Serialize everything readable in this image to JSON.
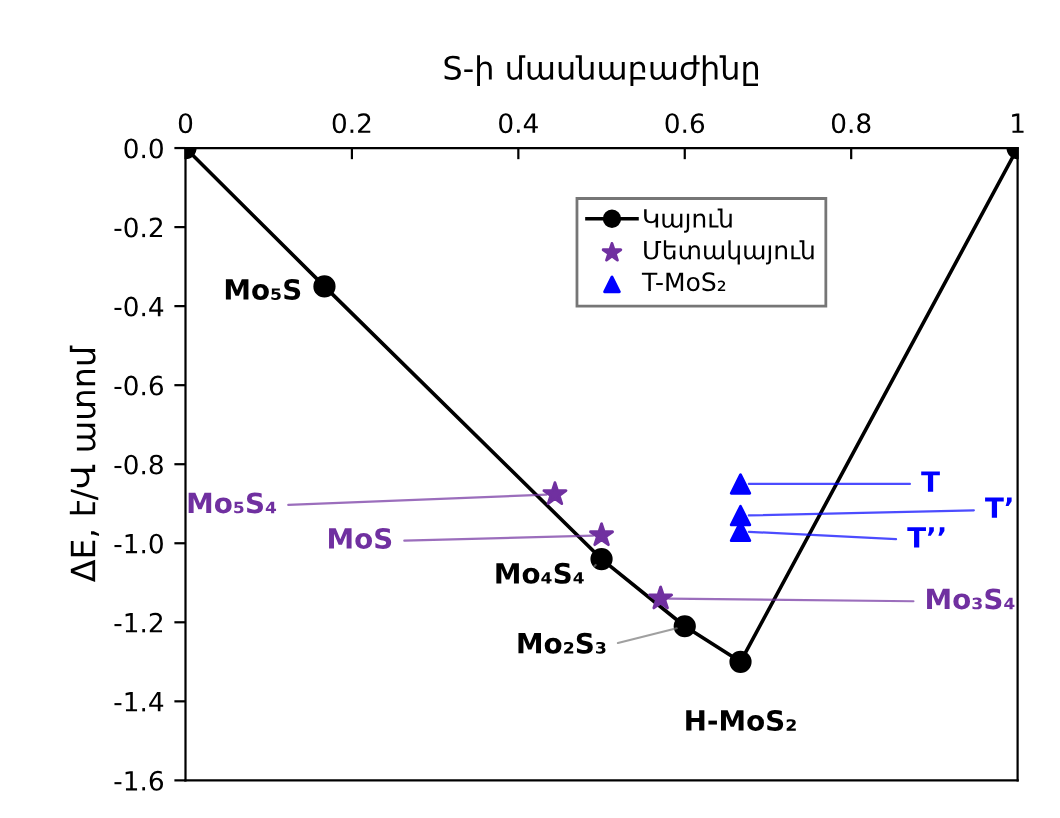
{
  "chart_data": {
    "type": "scatter",
    "xlabel": "S-ի մասնաբաժինը",
    "ylabel": "ΔE, է/Վ ատոմ",
    "xlim": [
      0,
      1
    ],
    "xticks": [
      0,
      0.2,
      0.4,
      0.6,
      0.8,
      1
    ],
    "ylim": [
      -1.6,
      0
    ],
    "yticks": [
      {
        "value": 0,
        "label": "0.0"
      },
      {
        "value": -0.2,
        "label": "-0.2"
      },
      {
        "value": -0.4,
        "label": "-0.4"
      },
      {
        "value": -0.6,
        "label": "-0.6"
      },
      {
        "value": -0.8,
        "label": "-0.8"
      },
      {
        "value": -1.0,
        "label": "-1.0"
      },
      {
        "value": -1.2,
        "label": "-1.2"
      },
      {
        "value": -1.4,
        "label": "-1.4"
      },
      {
        "value": -1.6,
        "label": "-1.6"
      }
    ],
    "grid": false,
    "legend": "top",
    "series": [
      {
        "name": "Կայուն",
        "type": "line",
        "marker": "circle",
        "color": "#000000",
        "x": [
          0,
          0.167,
          0.5,
          0.6,
          0.667,
          1
        ],
        "values": [
          0,
          -0.35,
          -1.04,
          -1.21,
          -1.3,
          0
        ]
      },
      {
        "name": "Մետակայուն",
        "marker": "star",
        "color": "#7030a0",
        "x": [
          0.444,
          0.5,
          0.571
        ],
        "values": [
          -0.876,
          -0.98,
          -1.14
        ]
      },
      {
        "name": "T-MoS₂",
        "marker": "triangle",
        "color": "#0000ff",
        "x": [
          0.667,
          0.667,
          0.667
        ],
        "values": [
          -0.85,
          -0.93,
          -0.97
        ]
      }
    ],
    "annotations": [
      {
        "text": "Mo₅S",
        "x": 0.167,
        "y": -0.35
      },
      {
        "text": "Mo₄S₄",
        "x": 0.5,
        "y": -1.04
      },
      {
        "text": "Mo₂S₃",
        "x": 0.6,
        "y": -1.21
      },
      {
        "text": "H-MoS₂",
        "x": 0.667,
        "y": -1.3
      },
      {
        "text": "Mo₅S₄",
        "x": 0.444,
        "y": -0.876
      },
      {
        "text": "MoS",
        "x": 0.5,
        "y": -0.98
      },
      {
        "text": "Mo₃S₄",
        "x": 0.571,
        "y": -1.14
      },
      {
        "text": "T",
        "x": 0.667,
        "y": -0.85
      },
      {
        "text": "T’",
        "x": 0.667,
        "y": -0.93
      },
      {
        "text": "T’’",
        "x": 0.667,
        "y": -0.97
      }
    ]
  }
}
